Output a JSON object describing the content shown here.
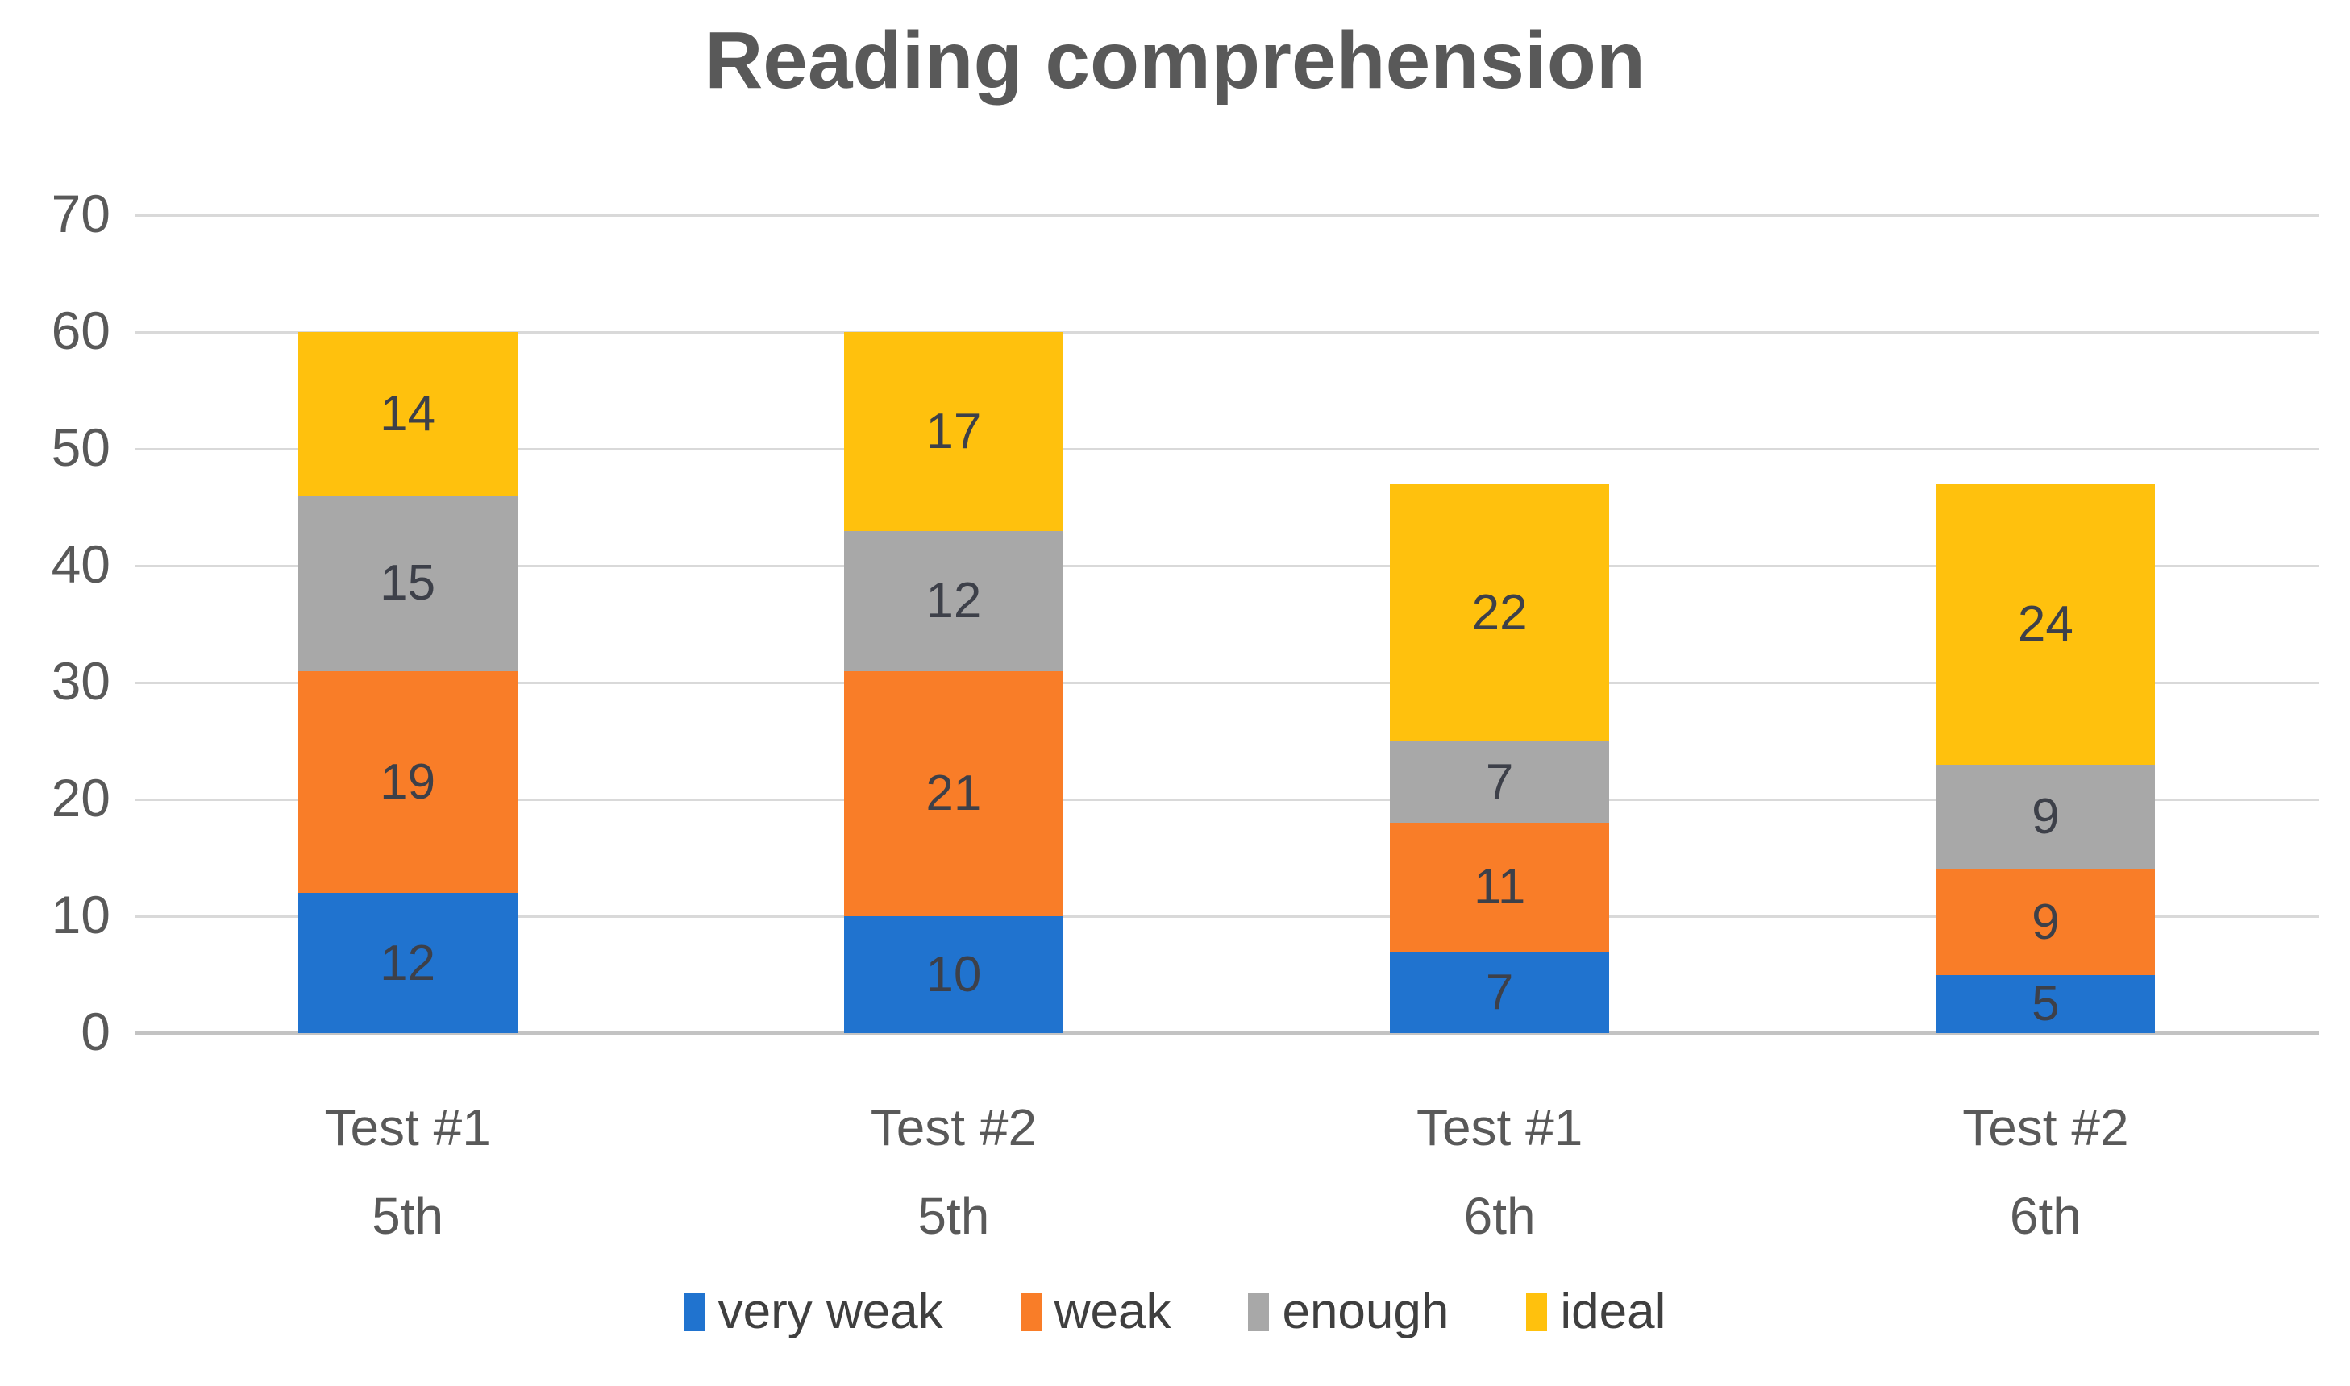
{
  "chart_data": {
    "type": "bar",
    "stacked": true,
    "title": "Reading comprehension",
    "categories": [
      {
        "line1": "Test #1",
        "line2": "5th",
        "label": "Test #1\n5th"
      },
      {
        "line1": "Test #2",
        "line2": "5th",
        "label": "Test #2\n5th"
      },
      {
        "line1": "Test #1",
        "line2": "6th",
        "label": "Test #1\n6th"
      },
      {
        "line1": "Test #2",
        "line2": "6th",
        "label": "Test #2\n6th"
      }
    ],
    "series": [
      {
        "name": "very weak",
        "color": "#2073cf",
        "values": [
          12,
          10,
          7,
          5
        ]
      },
      {
        "name": "weak",
        "color": "#f97d28",
        "values": [
          19,
          21,
          11,
          9
        ]
      },
      {
        "name": "enough",
        "color": "#a8a8a8",
        "values": [
          15,
          12,
          7,
          9
        ]
      },
      {
        "name": "ideal",
        "color": "#ffc10d",
        "values": [
          14,
          17,
          22,
          24
        ]
      }
    ],
    "totals": [
      60,
      60,
      47,
      47
    ],
    "yticks": [
      0,
      10,
      20,
      30,
      40,
      50,
      60,
      70
    ],
    "ylim": [
      0,
      70
    ],
    "xlabel": "",
    "ylabel": "",
    "grid": true,
    "legend_position": "bottom",
    "gridline_color": "#d9d9d9",
    "title_color": "#595959",
    "axis_label_color": "#595959",
    "data_label_color": "#3d4049",
    "background_color": "#ffffff"
  }
}
